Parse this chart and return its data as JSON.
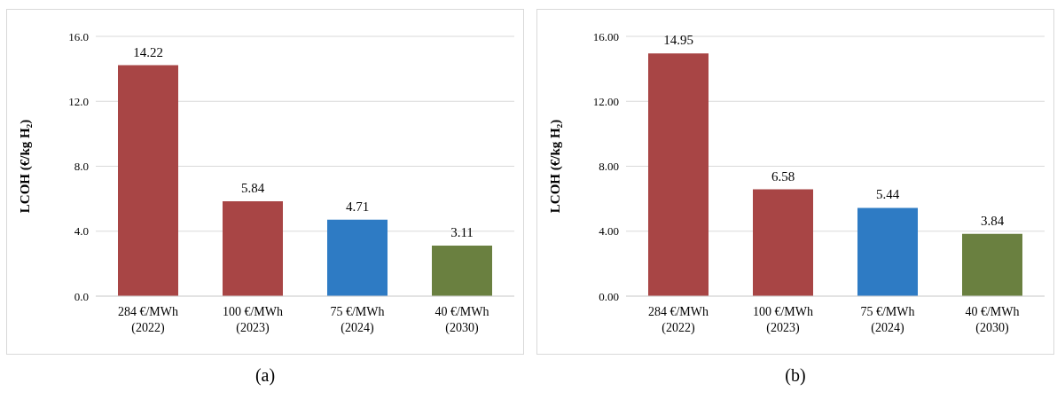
{
  "chart_data": [
    {
      "type": "bar",
      "ylabel": "LCOH (€/kg H₂)",
      "categories": [
        "284 €/MWh\n(2022)",
        "100 €/MWh\n(2023)",
        "75 €/MWh\n(2024)",
        "40 €/MWh\n(2030)"
      ],
      "values": [
        14.22,
        5.84,
        4.71,
        3.11
      ],
      "colors": [
        "#a84545",
        "#a84545",
        "#2e7bc4",
        "#6a8040"
      ],
      "ylim": [
        0,
        16
      ],
      "yticks": [
        {
          "value": 0,
          "label": "0.0"
        },
        {
          "value": 4,
          "label": "4.0"
        },
        {
          "value": 8,
          "label": "8.0"
        },
        {
          "value": 12,
          "label": "12.0"
        },
        {
          "value": 16,
          "label": "16.0"
        }
      ],
      "grid": "y",
      "data_labels": true,
      "annotations": [
        "(a)"
      ]
    },
    {
      "type": "bar",
      "ylabel": "LCOH (€/kg H₂)",
      "categories": [
        "284 €/MWh\n(2022)",
        "100 €/MWh\n(2023)",
        "75 €/MWh\n(2024)",
        "40 €/MWh\n(2030)"
      ],
      "values": [
        14.95,
        6.58,
        5.44,
        3.84
      ],
      "colors": [
        "#a84545",
        "#a84545",
        "#2e7bc4",
        "#6a8040"
      ],
      "ylim": [
        0,
        16
      ],
      "yticks": [
        {
          "value": 0,
          "label": "0.00"
        },
        {
          "value": 4,
          "label": "4.00"
        },
        {
          "value": 8,
          "label": "8.00"
        },
        {
          "value": 12,
          "label": "12.00"
        },
        {
          "value": 16,
          "label": "16.00"
        }
      ],
      "grid": "y",
      "data_labels": true,
      "annotations": [
        "(b)"
      ]
    }
  ]
}
